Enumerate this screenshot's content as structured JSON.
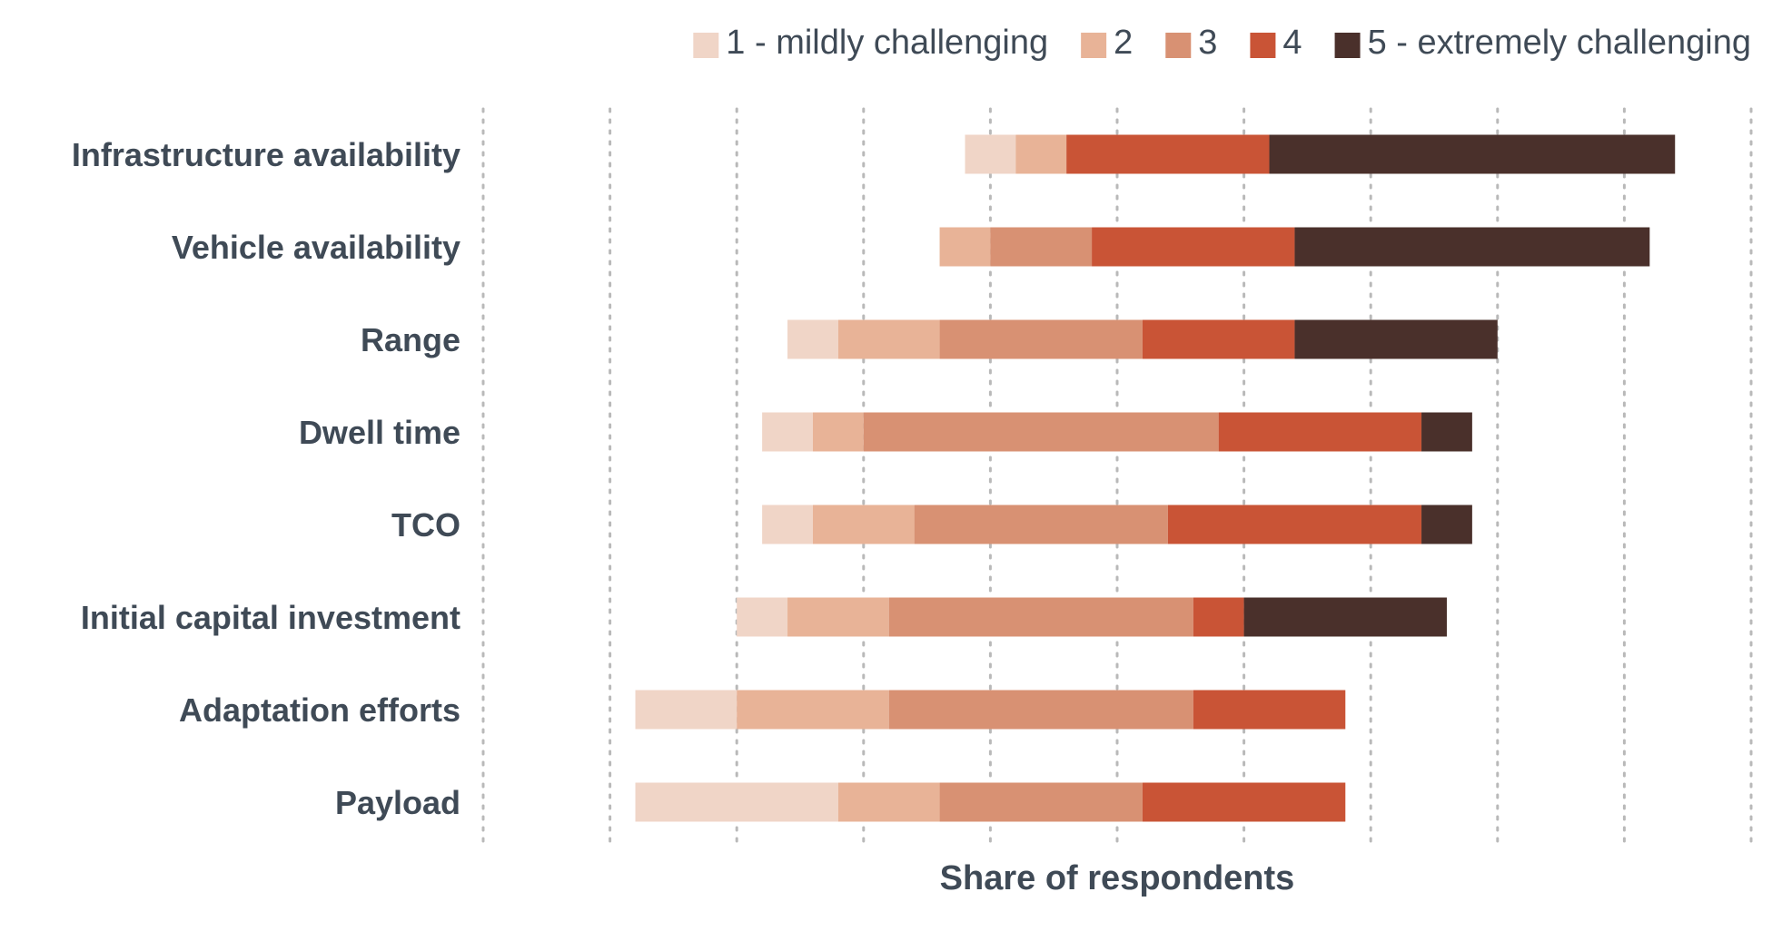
{
  "chart_data": {
    "type": "bar",
    "orientation": "horizontal",
    "stacked": "diverging",
    "title": "",
    "xlabel": "Share of respondents",
    "ylabel": "",
    "grid": true,
    "legend_position": "top-right",
    "categories": [
      "Infrastructure availability",
      "Vehicle availability",
      "Range",
      "Dwell time",
      "TCO",
      "Initial capital investment",
      "Adaptation efforts",
      "Payload"
    ],
    "series": [
      {
        "name": "1 - mildly challenging",
        "color": "#f0d5c7",
        "values": [
          4,
          0,
          4,
          4,
          4,
          4,
          8,
          16
        ]
      },
      {
        "name": "2",
        "color": "#e8b397",
        "values": [
          4,
          4,
          8,
          4,
          8,
          8,
          12,
          8
        ]
      },
      {
        "name": "3",
        "color": "#d89173",
        "values": [
          0,
          8,
          16,
          28,
          20,
          24,
          24,
          16
        ]
      },
      {
        "name": "4",
        "color": "#c95436",
        "values": [
          16,
          16,
          12,
          16,
          20,
          4,
          12,
          16
        ]
      },
      {
        "name": "5 - extremely challenging",
        "color": "#4a302b",
        "values": [
          32,
          28,
          16,
          4,
          4,
          16,
          0,
          0
        ]
      }
    ],
    "bar_starts": [
      -6,
      -8,
      -20,
      -22,
      -22,
      -24,
      -32,
      -32
    ],
    "xlim": [
      -44,
      56
    ]
  }
}
